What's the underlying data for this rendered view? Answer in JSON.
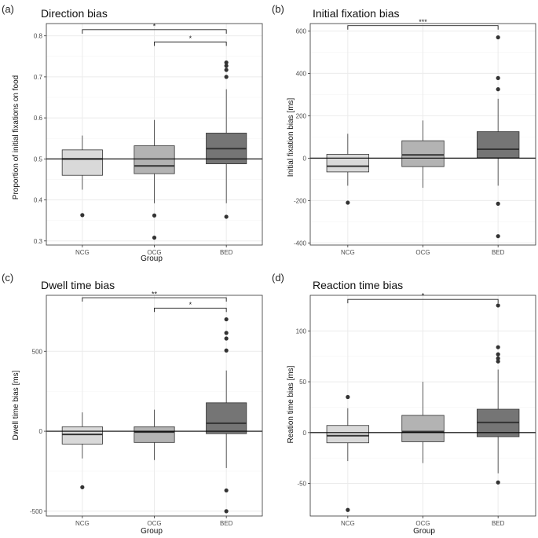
{
  "colors": {
    "NCG": "#d9d9d9",
    "OCG": "#b3b3b3",
    "BED": "#757575",
    "box_stroke": "#333333",
    "median": "#333333",
    "grid_major": "#ebebeb",
    "grid_minor": "#f5f5f5",
    "panel_border": "#333333",
    "outlier": "#333333",
    "reference_line": "#000000"
  },
  "chart_data": [
    {
      "panel": "(a)",
      "type": "box",
      "title": "Direction bias",
      "xlabel": "Group",
      "ylabel": "Proportion of initial fixations on food",
      "categories": [
        "NCG",
        "OCG",
        "BED"
      ],
      "ylim": [
        0.29,
        0.83
      ],
      "yticks": [
        0.3,
        0.4,
        0.5,
        0.6,
        0.7,
        0.8
      ],
      "ytick_labels": [
        "0.3",
        "0.4",
        "0.5",
        "0.6",
        "0.7",
        "0.8"
      ],
      "reference_line": 0.5,
      "boxes": [
        {
          "group": "NCG",
          "whisker_low": 0.425,
          "q1": 0.46,
          "median": 0.5,
          "q3": 0.522,
          "whisker_high": 0.557,
          "outliers": [
            0.363
          ]
        },
        {
          "group": "OCG",
          "whisker_low": 0.392,
          "q1": 0.464,
          "median": 0.483,
          "q3": 0.532,
          "whisker_high": 0.595,
          "outliers": [
            0.362,
            0.308
          ]
        },
        {
          "group": "BED",
          "whisker_low": 0.392,
          "q1": 0.488,
          "median": 0.525,
          "q3": 0.563,
          "whisker_high": 0.67,
          "outliers": [
            0.735,
            0.727,
            0.717,
            0.7,
            0.359
          ]
        }
      ],
      "significance": [
        {
          "from": "NCG",
          "to": "BED",
          "y": 0.815,
          "label": "*"
        },
        {
          "from": "OCG",
          "to": "BED",
          "y": 0.785,
          "label": "*"
        }
      ]
    },
    {
      "panel": "(b)",
      "type": "box",
      "title": "Initial fixation bias",
      "xlabel": "",
      "ylabel": "Initial fixation bias [ms]",
      "categories": [
        "NCG",
        "OCG",
        "BED"
      ],
      "ylim": [
        -410,
        635
      ],
      "yticks": [
        -400,
        -200,
        0,
        200,
        400,
        600
      ],
      "ytick_labels": [
        "-400",
        "-200",
        "0",
        "200",
        "400",
        "600"
      ],
      "reference_line": 0,
      "boxes": [
        {
          "group": "NCG",
          "whisker_low": -130,
          "q1": -65,
          "median": -38,
          "q3": 18,
          "whisker_high": 115,
          "outliers": [
            -210
          ]
        },
        {
          "group": "OCG",
          "whisker_low": -140,
          "q1": -40,
          "median": 15,
          "q3": 82,
          "whisker_high": 178,
          "outliers": []
        },
        {
          "group": "BED",
          "whisker_low": -130,
          "q1": 2,
          "median": 42,
          "q3": 125,
          "whisker_high": 280,
          "outliers": [
            570,
            378,
            325,
            -215,
            -368
          ]
        }
      ],
      "significance": [
        {
          "from": "NCG",
          "to": "BED",
          "y": 625,
          "label": "***"
        }
      ]
    },
    {
      "panel": "(c)",
      "type": "box",
      "title": "Dwell time bias",
      "xlabel": "Group",
      "ylabel": "Dwell time bias [ms]",
      "categories": [
        "NCG",
        "OCG",
        "BED"
      ],
      "ylim": [
        -530,
        850
      ],
      "yticks": [
        -500,
        0,
        500
      ],
      "ytick_labels": [
        "-500",
        "0",
        "500"
      ],
      "reference_line": 0,
      "boxes": [
        {
          "group": "NCG",
          "whisker_low": -170,
          "q1": -80,
          "median": -20,
          "q3": 28,
          "whisker_high": 118,
          "outliers": [
            -350
          ]
        },
        {
          "group": "OCG",
          "whisker_low": -180,
          "q1": -70,
          "median": -5,
          "q3": 28,
          "whisker_high": 135,
          "outliers": []
        },
        {
          "group": "BED",
          "whisker_low": -230,
          "q1": -15,
          "median": 50,
          "q3": 178,
          "whisker_high": 380,
          "outliers": [
            700,
            615,
            580,
            505,
            -370,
            -500
          ]
        }
      ],
      "significance": [
        {
          "from": "NCG",
          "to": "BED",
          "y": 835,
          "label": "**"
        },
        {
          "from": "OCG",
          "to": "BED",
          "y": 770,
          "label": "*"
        }
      ]
    },
    {
      "panel": "(d)",
      "type": "box",
      "title": "Reaction time bias",
      "xlabel": "Group",
      "ylabel": "Reation time bias [ms]",
      "categories": [
        "NCG",
        "OCG",
        "BED"
      ],
      "ylim": [
        -82,
        135
      ],
      "yticks": [
        -50,
        0,
        50,
        100
      ],
      "ytick_labels": [
        "-50",
        "0",
        "50",
        "100"
      ],
      "reference_line": 0,
      "boxes": [
        {
          "group": "NCG",
          "whisker_low": -28,
          "q1": -10,
          "median": -3,
          "q3": 7,
          "whisker_high": 24,
          "outliers": [
            35,
            -76
          ]
        },
        {
          "group": "OCG",
          "whisker_low": -30,
          "q1": -9,
          "median": 1,
          "q3": 17,
          "whisker_high": 50,
          "outliers": []
        },
        {
          "group": "BED",
          "whisker_low": -40,
          "q1": -4,
          "median": 10,
          "q3": 23,
          "whisker_high": 62,
          "outliers": [
            125,
            84,
            77,
            73,
            70,
            -49
          ]
        }
      ],
      "significance": [
        {
          "from": "NCG",
          "to": "BED",
          "y": 131,
          "label": "*"
        }
      ]
    }
  ]
}
